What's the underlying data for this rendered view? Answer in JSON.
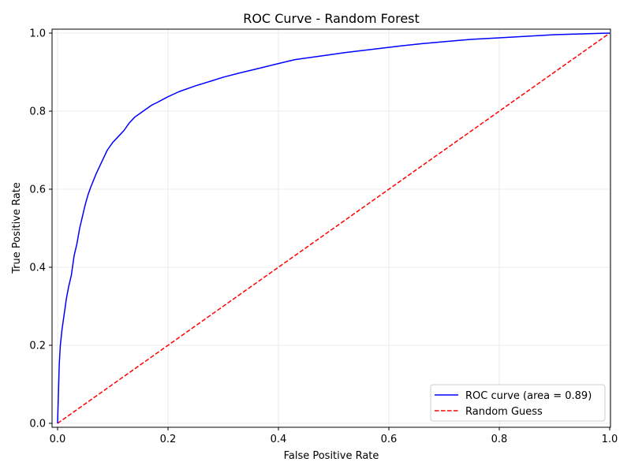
{
  "chart_data": {
    "type": "line",
    "title": "ROC Curve - Random Forest",
    "xlabel": "False Positive Rate",
    "ylabel": "True Positive Rate",
    "xlim": [
      0.0,
      1.0
    ],
    "ylim": [
      0.0,
      1.0
    ],
    "xticks": [
      "0.0",
      "0.2",
      "0.4",
      "0.6",
      "0.8",
      "1.0"
    ],
    "yticks": [
      "0.0",
      "0.2",
      "0.4",
      "0.6",
      "0.8",
      "1.0"
    ],
    "grid": true,
    "legend_position": "lower-right",
    "series": [
      {
        "name": "ROC curve (area = 0.89)",
        "color": "#0000ff",
        "style": "solid",
        "x": [
          0.0,
          0.002,
          0.003,
          0.005,
          0.008,
          0.012,
          0.016,
          0.02,
          0.025,
          0.03,
          0.035,
          0.04,
          0.045,
          0.05,
          0.055,
          0.06,
          0.07,
          0.08,
          0.09,
          0.1,
          0.11,
          0.12,
          0.13,
          0.14,
          0.15,
          0.16,
          0.17,
          0.18,
          0.2,
          0.22,
          0.25,
          0.28,
          0.3,
          0.33,
          0.36,
          0.4,
          0.43,
          0.48,
          0.52,
          0.58,
          0.62,
          0.66,
          0.7,
          0.75,
          0.8,
          0.85,
          0.9,
          0.95,
          1.0
        ],
        "y": [
          0.0,
          0.1,
          0.15,
          0.2,
          0.24,
          0.28,
          0.32,
          0.35,
          0.38,
          0.43,
          0.46,
          0.5,
          0.53,
          0.56,
          0.585,
          0.605,
          0.64,
          0.67,
          0.7,
          0.72,
          0.735,
          0.75,
          0.77,
          0.785,
          0.795,
          0.805,
          0.815,
          0.822,
          0.837,
          0.85,
          0.865,
          0.878,
          0.887,
          0.898,
          0.908,
          0.922,
          0.932,
          0.942,
          0.95,
          0.96,
          0.967,
          0.973,
          0.978,
          0.984,
          0.988,
          0.992,
          0.996,
          0.998,
          1.0
        ]
      },
      {
        "name": "Random Guess",
        "color": "#ff0000",
        "style": "dashed",
        "x": [
          0.0,
          1.0
        ],
        "y": [
          0.0,
          1.0
        ]
      }
    ]
  }
}
